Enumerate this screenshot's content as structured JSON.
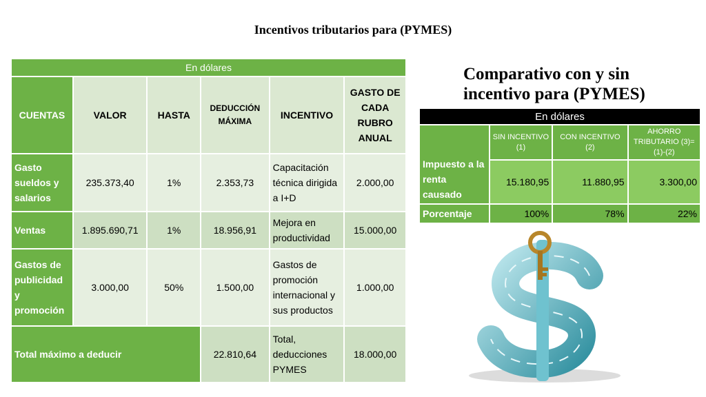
{
  "slide_title": "Incentivos tributarios para (PYMES)",
  "left_table": {
    "band": "En dólares",
    "headers": [
      "CUENTAS",
      "VALOR",
      "HASTA",
      "DEDUCCIÓN MÁXIMA",
      "INCENTIVO",
      "GASTO DE CADA RUBRO ANUAL"
    ],
    "rows": [
      {
        "cuenta": "Gasto sueldos y salarios",
        "valor": "235.373,40",
        "hasta": "1%",
        "deduccion": "2.353,73",
        "incentivo": "Capacitación técnica dirigida a I+D",
        "gasto": "2.000,00"
      },
      {
        "cuenta": "Ventas",
        "valor": "1.895.690,71",
        "hasta": "1%",
        "deduccion": "18.956,91",
        "incentivo": "Mejora en productividad",
        "gasto": "15.000,00"
      },
      {
        "cuenta": "Gastos de publicidad y promoción",
        "valor": "3.000,00",
        "hasta": "50%",
        "deduccion": "1.500,00",
        "incentivo": "Gastos de promoción internacional y sus productos",
        "gasto": "1.000,00"
      }
    ],
    "total": {
      "label": "Total máximo a deducir",
      "deduccion": "22.810,64",
      "incentivo": "Total, deducciones PYMES",
      "gasto": "18.000,00"
    }
  },
  "comparison": {
    "title": "Comparativo con y sin incentivo para (PYMES)",
    "band": "En dólares",
    "headers": [
      "SIN INCENTIVO (1)",
      "CON INCENTIVO (2)",
      "AHORRO TRIBUTARIO (3)=(1)-(2)"
    ],
    "rows": [
      {
        "label": "Impuesto a la renta causado",
        "values": [
          "15.180,95",
          "11.880,95",
          "3.300,00"
        ]
      },
      {
        "label": "Porcentaje",
        "values": [
          "100%",
          "78%",
          "22%"
        ]
      }
    ]
  },
  "image": {
    "icon": "dollar-puzzle-key-icon"
  }
}
